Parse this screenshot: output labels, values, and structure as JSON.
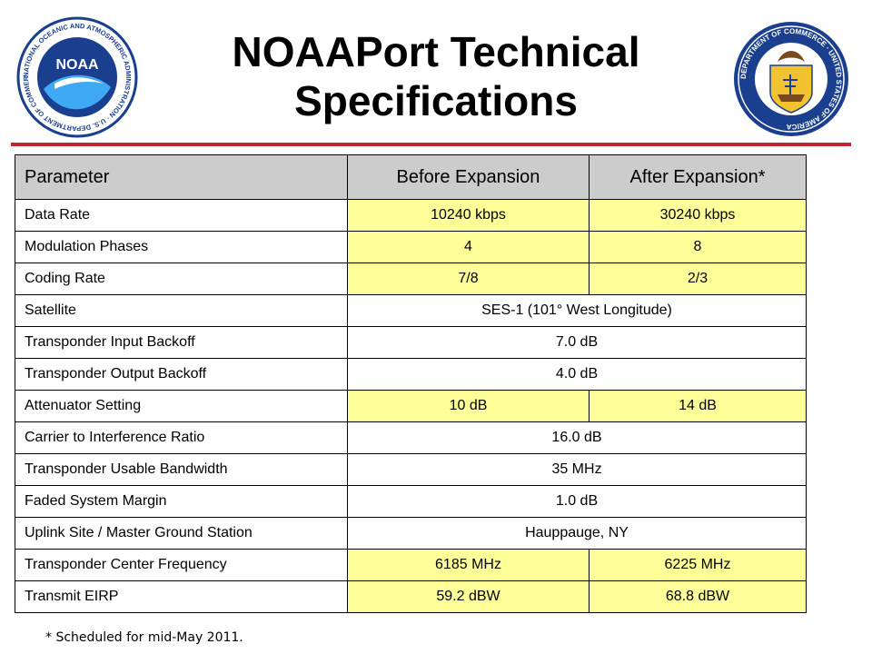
{
  "title_line1": "NOAAPort Technical",
  "title_line2": "Specifications",
  "logos": {
    "left": {
      "name": "noaa-logo",
      "text": "NOAA",
      "ring_text": "NATIONAL OCEANIC AND ATMOSPHERIC ADMINISTRATION · U.S. DEPARTMENT OF COMMERCE"
    },
    "right": {
      "name": "department-of-commerce-seal",
      "ring_text": "DEPARTMENT OF COMMERCE · UNITED STATES OF AMERICA"
    }
  },
  "colors": {
    "rule": "#c0272d",
    "header_bg": "#cccccc",
    "highlight": "#ffff99"
  },
  "table": {
    "headers": [
      "Parameter",
      "Before Expansion",
      "After Expansion*"
    ],
    "rows": [
      {
        "param": "Data Rate",
        "before": "10240 kbps",
        "after": "30240 kbps"
      },
      {
        "param": "Modulation Phases",
        "before": "4",
        "after": "8"
      },
      {
        "param": "Coding Rate",
        "before": "7/8",
        "after": "2/3"
      },
      {
        "param": "Satellite",
        "value": "SES-1 (101° West Longitude)"
      },
      {
        "param": "Transponder Input Backoff",
        "value": "7.0 dB"
      },
      {
        "param": "Transponder Output Backoff",
        "value": "4.0 dB"
      },
      {
        "param": "Attenuator Setting",
        "before": "10 dB",
        "after": "14 dB"
      },
      {
        "param": "Carrier to Interference Ratio",
        "value": "16.0 dB"
      },
      {
        "param": "Transponder Usable Bandwidth",
        "value": "35 MHz"
      },
      {
        "param": "Faded System Margin",
        "value": "1.0 dB"
      },
      {
        "param": "Uplink Site / Master Ground Station",
        "value": "Hauppauge, NY"
      },
      {
        "param": "Transponder Center Frequency",
        "before": "6185 MHz",
        "after": "6225 MHz"
      },
      {
        "param": "Transmit EIRP",
        "before": "59.2 dBW",
        "after": "68.8 dBW"
      }
    ]
  },
  "footnote": "* Scheduled for mid-May 2011."
}
